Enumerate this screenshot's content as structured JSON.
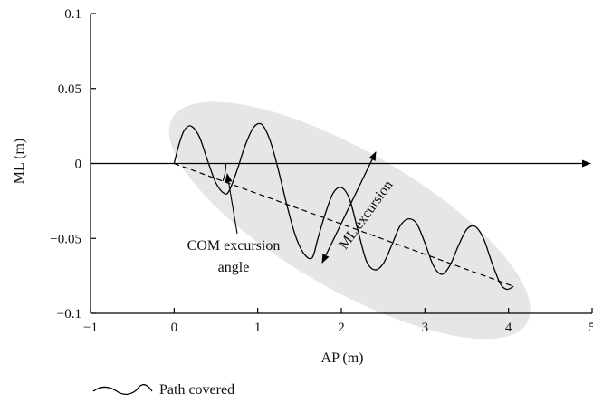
{
  "chart_data": {
    "type": "line",
    "xlabel": "AP (m)",
    "ylabel": "ML (m)",
    "xlim": [
      -1,
      5
    ],
    "ylim": [
      -0.1,
      0.1
    ],
    "x_ticks": [
      "−1",
      "0",
      "1",
      "2",
      "3",
      "4",
      "5"
    ],
    "y_ticks": [
      "0.1",
      "0.05",
      "0",
      "−0.05",
      "−0.1"
    ],
    "x_tick_values": [
      -1,
      0,
      1,
      2,
      3,
      4,
      5
    ],
    "y_tick_values": [
      0.1,
      0.05,
      0,
      -0.05,
      -0.1
    ],
    "series": [
      {
        "key": "path",
        "x": [
          0,
          0.06,
          0.12,
          0.2,
          0.3,
          0.4,
          0.5,
          0.6,
          0.66,
          0.75,
          0.85,
          0.95,
          1.05,
          1.15,
          1.25,
          1.35,
          1.45,
          1.55,
          1.65,
          1.72,
          1.8,
          1.9,
          2.0,
          2.1,
          2.2,
          2.3,
          2.4,
          2.5,
          2.6,
          2.7,
          2.8,
          2.9,
          3.0,
          3.1,
          3.2,
          3.3,
          3.4,
          3.5,
          3.6,
          3.7,
          3.8,
          3.9,
          3.98,
          4.06
        ],
        "y": [
          0,
          0.013,
          0.022,
          0.025,
          0.018,
          0.002,
          -0.013,
          -0.02,
          -0.018,
          -0.005,
          0.012,
          0.024,
          0.026,
          0.015,
          -0.005,
          -0.028,
          -0.048,
          -0.06,
          -0.063,
          -0.05,
          -0.035,
          -0.02,
          -0.016,
          -0.024,
          -0.045,
          -0.065,
          -0.071,
          -0.067,
          -0.055,
          -0.042,
          -0.037,
          -0.04,
          -0.053,
          -0.068,
          -0.074,
          -0.068,
          -0.055,
          -0.044,
          -0.042,
          -0.05,
          -0.066,
          -0.08,
          -0.084,
          -0.082
        ]
      }
    ],
    "com_line": {
      "x": [
        0,
        4.06
      ],
      "y": [
        0,
        -0.082
      ]
    },
    "ellipse": {
      "center": [
        2.1,
        -0.038
      ],
      "rx_m": 2.45,
      "ry_ml": 0.046,
      "angle_deg": 30
    },
    "annotations": {
      "com_line1": "COM excursion",
      "com_line2": "angle",
      "ml_excursion": "ML excursion"
    },
    "legend": {
      "label": "Path covered"
    }
  },
  "colors": {
    "ellipse_fill": "#e6e6e6",
    "line": "#000000"
  }
}
